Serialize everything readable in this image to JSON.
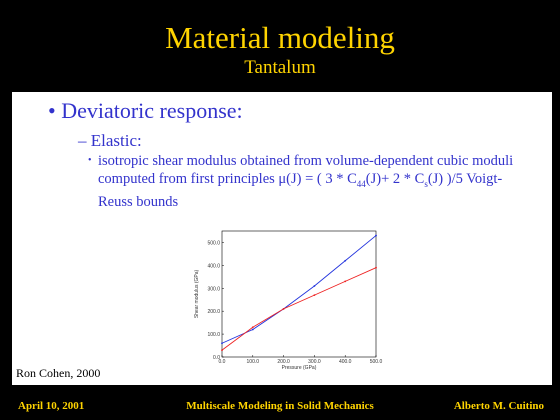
{
  "header": {
    "title": "Material modeling",
    "subtitle": "Tantalum"
  },
  "body": {
    "bullet": "Deviatoric response:",
    "sub_bullet": "Elastic:",
    "detail": [
      "isotropic shear modulus obtained from volume-dependent cubic moduli computed from first principles μ(J) = ( 3 * C",
      "44",
      "(J)+ 2 * C",
      "s",
      "(J) )/5  Voigt-Reuss bounds"
    ],
    "credit": "Ron Cohen, 2000"
  },
  "chart_data": {
    "type": "line",
    "x_label": "Pressure (GPa)",
    "y_label": "Shear modulus (GPa)",
    "x": [
      0,
      100,
      200,
      300,
      400,
      500
    ],
    "series": [
      {
        "color": "#2233dd",
        "values": [
          60,
          120,
          210,
          310,
          420,
          530
        ]
      },
      {
        "color": "#ee2222",
        "values": [
          30,
          130,
          210,
          270,
          330,
          390
        ]
      }
    ],
    "xlim": [
      0,
      500
    ],
    "ylim": [
      0,
      550
    ],
    "xticks": [
      {
        "value": 0,
        "label": "0.0"
      },
      {
        "value": 100,
        "label": "100.0"
      },
      {
        "value": 200,
        "label": "200.0"
      },
      {
        "value": 300,
        "label": "300.0"
      },
      {
        "value": 400,
        "label": "400.0"
      },
      {
        "value": 500,
        "label": "500.0"
      }
    ],
    "yticks": [
      {
        "value": 0,
        "label": "0.0"
      },
      {
        "value": 100,
        "label": "100.0"
      },
      {
        "value": 200,
        "label": "200.0"
      },
      {
        "value": 300,
        "label": "300.0"
      },
      {
        "value": 400,
        "label": "400.0"
      },
      {
        "value": 500,
        "label": "500.0"
      }
    ]
  },
  "footer": {
    "date": "April 10, 2001",
    "course": "Multiscale Modeling in Solid Mechanics",
    "author": "Alberto M. Cuitino"
  }
}
